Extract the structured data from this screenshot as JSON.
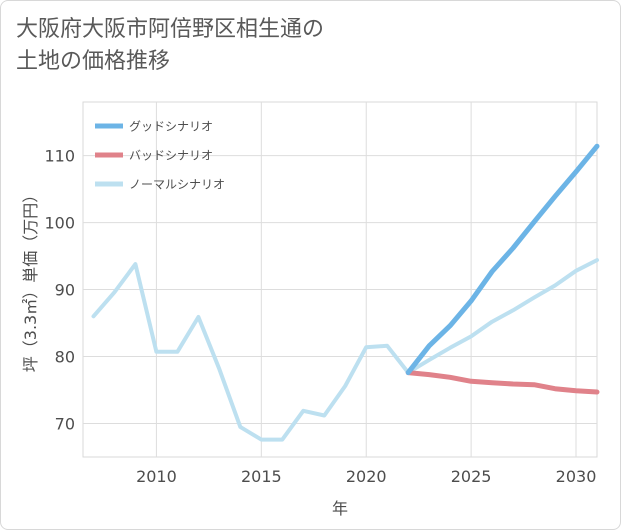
{
  "title_lines": [
    "大阪府大阪市阿倍野区相生通の",
    "土地の価格推移"
  ],
  "chart_data": {
    "type": "line",
    "title": "大阪府大阪市阿倍野区相生通の土地の価格推移",
    "xlabel": "年",
    "ylabel": "坪（3.3㎡）単価（万円）",
    "xlim": [
      2006.5,
      2031
    ],
    "ylim": [
      65,
      118
    ],
    "xticks": [
      2010,
      2015,
      2020,
      2025,
      2030
    ],
    "yticks": [
      70,
      80,
      90,
      100,
      110
    ],
    "grid": true,
    "legend_position": "top-left",
    "series": [
      {
        "name": "グッドシナリオ",
        "color": "#6cb4e6",
        "x": [
          2022,
          2023,
          2024,
          2025,
          2026,
          2027,
          2028,
          2029,
          2030,
          2031
        ],
        "values": [
          77.6,
          81.6,
          84.6,
          88.3,
          92.7,
          96.2,
          100.1,
          103.9,
          107.6,
          111.4
        ]
      },
      {
        "name": "バッドシナリオ",
        "color": "#e0828a",
        "x": [
          2022,
          2023,
          2024,
          2025,
          2026,
          2027,
          2028,
          2029,
          2030,
          2031
        ],
        "values": [
          77.6,
          77.3,
          76.9,
          76.3,
          76.1,
          75.9,
          75.8,
          75.2,
          74.9,
          74.7
        ]
      },
      {
        "name": "ノーマルシナリオ",
        "color": "#bde0f0",
        "x": [
          2007,
          2008,
          2009,
          2010,
          2011,
          2012,
          2013,
          2014,
          2015,
          2016,
          2017,
          2018,
          2019,
          2020,
          2021,
          2022,
          2023,
          2024,
          2025,
          2026,
          2027,
          2028,
          2029,
          2030,
          2031
        ],
        "values": [
          86.0,
          89.6,
          93.8,
          80.7,
          80.7,
          85.9,
          78.1,
          69.5,
          67.6,
          67.6,
          71.9,
          71.2,
          75.6,
          81.4,
          81.6,
          77.6,
          79.5,
          81.3,
          83.0,
          85.2,
          86.9,
          88.8,
          90.6,
          92.8,
          94.4
        ]
      }
    ]
  }
}
